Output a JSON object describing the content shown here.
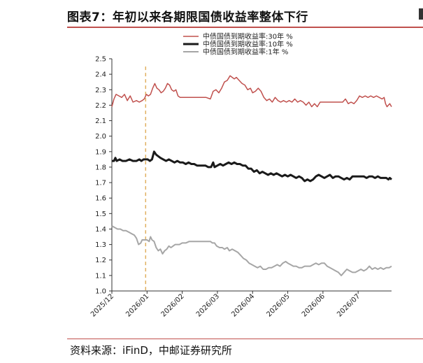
{
  "title": "图表7：年初以来各期限国债收益率整体下行",
  "source": "资料来源：iFinD，中邮证券研究所",
  "chart_data": {
    "type": "line",
    "title": "图表7：年初以来各期限国债收益率整体下行",
    "xlabel": "",
    "ylabel": "",
    "ylim": [
      1.0,
      2.5
    ],
    "y_ticks": [
      "1.0",
      "1.1",
      "1.2",
      "1.3",
      "1.4",
      "1.5",
      "1.6",
      "1.7",
      "1.8",
      "1.9",
      "2.0",
      "2.1",
      "2.2",
      "2.3",
      "2.4",
      "2.5"
    ],
    "x_ticks": [
      "2025/12",
      "2026/01",
      "2026/02",
      "2026/03",
      "2026/04",
      "2026/05",
      "2026/06",
      "2026/07"
    ],
    "x_range": [
      0,
      7.95
    ],
    "legend_position": "top-center",
    "grid": false,
    "marker_line": {
      "x": 0.96,
      "color": "#e0b060",
      "style": "dashed"
    },
    "series": [
      {
        "name": "中债国债到期收益率:30年 %",
        "color": "#c0504d",
        "width": 1.5,
        "points": [
          [
            0.0,
            2.19
          ],
          [
            0.06,
            2.24
          ],
          [
            0.12,
            2.27
          ],
          [
            0.2,
            2.26
          ],
          [
            0.28,
            2.25
          ],
          [
            0.36,
            2.27
          ],
          [
            0.44,
            2.23
          ],
          [
            0.52,
            2.26
          ],
          [
            0.6,
            2.22
          ],
          [
            0.7,
            2.23
          ],
          [
            0.78,
            2.22
          ],
          [
            0.86,
            2.23
          ],
          [
            0.92,
            2.24
          ],
          [
            0.98,
            2.27
          ],
          [
            1.04,
            2.26
          ],
          [
            1.1,
            2.27
          ],
          [
            1.16,
            2.31
          ],
          [
            1.22,
            2.34
          ],
          [
            1.28,
            2.31
          ],
          [
            1.34,
            2.3
          ],
          [
            1.4,
            2.28
          ],
          [
            1.46,
            2.29
          ],
          [
            1.52,
            2.31
          ],
          [
            1.58,
            2.34
          ],
          [
            1.64,
            2.33
          ],
          [
            1.7,
            2.3
          ],
          [
            1.76,
            2.29
          ],
          [
            1.82,
            2.3
          ],
          [
            1.88,
            2.26
          ],
          [
            1.94,
            2.25
          ],
          [
            2.05,
            2.25
          ],
          [
            2.2,
            2.25
          ],
          [
            2.35,
            2.25
          ],
          [
            2.5,
            2.25
          ],
          [
            2.68,
            2.25
          ],
          [
            2.8,
            2.24
          ],
          [
            2.88,
            2.29
          ],
          [
            2.96,
            2.3
          ],
          [
            3.04,
            2.28
          ],
          [
            3.12,
            2.31
          ],
          [
            3.2,
            2.35
          ],
          [
            3.28,
            2.36
          ],
          [
            3.36,
            2.39
          ],
          [
            3.42,
            2.38
          ],
          [
            3.48,
            2.37
          ],
          [
            3.54,
            2.38
          ],
          [
            3.62,
            2.36
          ],
          [
            3.7,
            2.34
          ],
          [
            3.78,
            2.33
          ],
          [
            3.86,
            2.3
          ],
          [
            3.94,
            2.31
          ],
          [
            4.0,
            2.28
          ],
          [
            4.08,
            2.29
          ],
          [
            4.16,
            2.31
          ],
          [
            4.24,
            2.29
          ],
          [
            4.32,
            2.25
          ],
          [
            4.4,
            2.23
          ],
          [
            4.48,
            2.24
          ],
          [
            4.56,
            2.22
          ],
          [
            4.64,
            2.25
          ],
          [
            4.72,
            2.23
          ],
          [
            4.8,
            2.22
          ],
          [
            4.88,
            2.23
          ],
          [
            4.96,
            2.22
          ],
          [
            5.04,
            2.23
          ],
          [
            5.12,
            2.22
          ],
          [
            5.2,
            2.24
          ],
          [
            5.28,
            2.22
          ],
          [
            5.36,
            2.23
          ],
          [
            5.44,
            2.22
          ],
          [
            5.52,
            2.2
          ],
          [
            5.6,
            2.22
          ],
          [
            5.68,
            2.19
          ],
          [
            5.76,
            2.21
          ],
          [
            5.84,
            2.19
          ],
          [
            5.92,
            2.22
          ],
          [
            6.0,
            2.22
          ],
          [
            6.2,
            2.22
          ],
          [
            6.4,
            2.22
          ],
          [
            6.56,
            2.22
          ],
          [
            6.64,
            2.24
          ],
          [
            6.72,
            2.21
          ],
          [
            6.8,
            2.22
          ],
          [
            6.88,
            2.21
          ],
          [
            6.96,
            2.23
          ],
          [
            7.04,
            2.26
          ],
          [
            7.12,
            2.25
          ],
          [
            7.2,
            2.26
          ],
          [
            7.28,
            2.25
          ],
          [
            7.36,
            2.26
          ],
          [
            7.44,
            2.25
          ],
          [
            7.52,
            2.26
          ],
          [
            7.6,
            2.25
          ],
          [
            7.68,
            2.24
          ],
          [
            7.74,
            2.25
          ],
          [
            7.78,
            2.21
          ],
          [
            7.82,
            2.19
          ],
          [
            7.86,
            2.2
          ],
          [
            7.9,
            2.21
          ],
          [
            7.95,
            2.19
          ]
        ]
      },
      {
        "name": "中债国债到期收益率:10年 %",
        "color": "#1a1a1a",
        "width": 3,
        "points": [
          [
            0.0,
            1.84
          ],
          [
            0.06,
            1.84
          ],
          [
            0.1,
            1.86
          ],
          [
            0.14,
            1.84
          ],
          [
            0.22,
            1.85
          ],
          [
            0.3,
            1.84
          ],
          [
            0.4,
            1.84
          ],
          [
            0.5,
            1.85
          ],
          [
            0.6,
            1.84
          ],
          [
            0.7,
            1.84
          ],
          [
            0.78,
            1.85
          ],
          [
            0.84,
            1.84
          ],
          [
            0.9,
            1.85
          ],
          [
            0.96,
            1.85
          ],
          [
            1.02,
            1.85
          ],
          [
            1.08,
            1.84
          ],
          [
            1.14,
            1.85
          ],
          [
            1.2,
            1.9
          ],
          [
            1.26,
            1.88
          ],
          [
            1.32,
            1.87
          ],
          [
            1.38,
            1.86
          ],
          [
            1.46,
            1.85
          ],
          [
            1.54,
            1.84
          ],
          [
            1.62,
            1.85
          ],
          [
            1.7,
            1.84
          ],
          [
            1.78,
            1.83
          ],
          [
            1.86,
            1.84
          ],
          [
            1.94,
            1.83
          ],
          [
            2.02,
            1.83
          ],
          [
            2.1,
            1.82
          ],
          [
            2.18,
            1.83
          ],
          [
            2.26,
            1.82
          ],
          [
            2.34,
            1.82
          ],
          [
            2.42,
            1.81
          ],
          [
            2.5,
            1.81
          ],
          [
            2.58,
            1.81
          ],
          [
            2.66,
            1.81
          ],
          [
            2.74,
            1.8
          ],
          [
            2.82,
            1.8
          ],
          [
            2.88,
            1.83
          ],
          [
            2.92,
            1.8
          ],
          [
            3.0,
            1.81
          ],
          [
            3.08,
            1.82
          ],
          [
            3.16,
            1.81
          ],
          [
            3.24,
            1.82
          ],
          [
            3.32,
            1.83
          ],
          [
            3.4,
            1.82
          ],
          [
            3.48,
            1.83
          ],
          [
            3.56,
            1.82
          ],
          [
            3.64,
            1.82
          ],
          [
            3.72,
            1.81
          ],
          [
            3.8,
            1.81
          ],
          [
            3.88,
            1.79
          ],
          [
            3.96,
            1.79
          ],
          [
            4.04,
            1.77
          ],
          [
            4.12,
            1.78
          ],
          [
            4.2,
            1.76
          ],
          [
            4.28,
            1.77
          ],
          [
            4.36,
            1.76
          ],
          [
            4.44,
            1.75
          ],
          [
            4.52,
            1.76
          ],
          [
            4.6,
            1.75
          ],
          [
            4.68,
            1.76
          ],
          [
            4.76,
            1.75
          ],
          [
            4.84,
            1.74
          ],
          [
            4.92,
            1.75
          ],
          [
            5.0,
            1.74
          ],
          [
            5.08,
            1.75
          ],
          [
            5.16,
            1.74
          ],
          [
            5.24,
            1.73
          ],
          [
            5.32,
            1.74
          ],
          [
            5.4,
            1.73
          ],
          [
            5.48,
            1.71
          ],
          [
            5.56,
            1.72
          ],
          [
            5.64,
            1.71
          ],
          [
            5.72,
            1.72
          ],
          [
            5.8,
            1.74
          ],
          [
            5.88,
            1.75
          ],
          [
            5.96,
            1.74
          ],
          [
            6.04,
            1.73
          ],
          [
            6.12,
            1.74
          ],
          [
            6.2,
            1.75
          ],
          [
            6.28,
            1.73
          ],
          [
            6.36,
            1.74
          ],
          [
            6.44,
            1.74
          ],
          [
            6.52,
            1.73
          ],
          [
            6.6,
            1.72
          ],
          [
            6.68,
            1.73
          ],
          [
            6.76,
            1.72
          ],
          [
            6.84,
            1.74
          ],
          [
            6.92,
            1.74
          ],
          [
            7.0,
            1.74
          ],
          [
            7.08,
            1.74
          ],
          [
            7.16,
            1.74
          ],
          [
            7.24,
            1.73
          ],
          [
            7.32,
            1.74
          ],
          [
            7.4,
            1.74
          ],
          [
            7.48,
            1.73
          ],
          [
            7.56,
            1.74
          ],
          [
            7.64,
            1.73
          ],
          [
            7.72,
            1.73
          ],
          [
            7.8,
            1.73
          ],
          [
            7.86,
            1.72
          ],
          [
            7.9,
            1.73
          ],
          [
            7.95,
            1.72
          ]
        ]
      },
      {
        "name": "中债国债到期收益率:1年 %",
        "color": "#a6a6a6",
        "width": 2,
        "points": [
          [
            0.0,
            1.42
          ],
          [
            0.08,
            1.41
          ],
          [
            0.16,
            1.4
          ],
          [
            0.24,
            1.4
          ],
          [
            0.32,
            1.39
          ],
          [
            0.4,
            1.39
          ],
          [
            0.48,
            1.38
          ],
          [
            0.56,
            1.37
          ],
          [
            0.64,
            1.36
          ],
          [
            0.7,
            1.34
          ],
          [
            0.76,
            1.3
          ],
          [
            0.82,
            1.31
          ],
          [
            0.86,
            1.33
          ],
          [
            0.92,
            1.33
          ],
          [
            1.0,
            1.33
          ],
          [
            1.06,
            1.32
          ],
          [
            1.1,
            1.35
          ],
          [
            1.14,
            1.33
          ],
          [
            1.2,
            1.32
          ],
          [
            1.26,
            1.28
          ],
          [
            1.32,
            1.26
          ],
          [
            1.38,
            1.27
          ],
          [
            1.44,
            1.24
          ],
          [
            1.5,
            1.26
          ],
          [
            1.56,
            1.27
          ],
          [
            1.62,
            1.29
          ],
          [
            1.68,
            1.28
          ],
          [
            1.74,
            1.29
          ],
          [
            1.8,
            1.3
          ],
          [
            1.86,
            1.3
          ],
          [
            1.92,
            1.3
          ],
          [
            2.0,
            1.31
          ],
          [
            2.1,
            1.31
          ],
          [
            2.2,
            1.32
          ],
          [
            2.3,
            1.32
          ],
          [
            2.4,
            1.32
          ],
          [
            2.5,
            1.32
          ],
          [
            2.6,
            1.32
          ],
          [
            2.7,
            1.32
          ],
          [
            2.8,
            1.32
          ],
          [
            2.86,
            1.31
          ],
          [
            2.92,
            1.31
          ],
          [
            2.98,
            1.29
          ],
          [
            3.06,
            1.28
          ],
          [
            3.14,
            1.28
          ],
          [
            3.2,
            1.27
          ],
          [
            3.28,
            1.28
          ],
          [
            3.34,
            1.26
          ],
          [
            3.42,
            1.27
          ],
          [
            3.5,
            1.26
          ],
          [
            3.58,
            1.25
          ],
          [
            3.66,
            1.23
          ],
          [
            3.74,
            1.21
          ],
          [
            3.82,
            1.2
          ],
          [
            3.9,
            1.18
          ],
          [
            3.98,
            1.17
          ],
          [
            4.06,
            1.16
          ],
          [
            4.14,
            1.15
          ],
          [
            4.22,
            1.16
          ],
          [
            4.3,
            1.14
          ],
          [
            4.38,
            1.14
          ],
          [
            4.46,
            1.15
          ],
          [
            4.54,
            1.15
          ],
          [
            4.62,
            1.16
          ],
          [
            4.7,
            1.17
          ],
          [
            4.78,
            1.16
          ],
          [
            4.86,
            1.18
          ],
          [
            4.94,
            1.19
          ],
          [
            5.0,
            1.18
          ],
          [
            5.08,
            1.17
          ],
          [
            5.16,
            1.16
          ],
          [
            5.24,
            1.16
          ],
          [
            5.32,
            1.15
          ],
          [
            5.4,
            1.15
          ],
          [
            5.48,
            1.16
          ],
          [
            5.56,
            1.16
          ],
          [
            5.64,
            1.16
          ],
          [
            5.72,
            1.17
          ],
          [
            5.8,
            1.18
          ],
          [
            5.88,
            1.17
          ],
          [
            5.96,
            1.18
          ],
          [
            6.04,
            1.18
          ],
          [
            6.12,
            1.16
          ],
          [
            6.2,
            1.15
          ],
          [
            6.28,
            1.14
          ],
          [
            6.36,
            1.13
          ],
          [
            6.44,
            1.12
          ],
          [
            6.52,
            1.1
          ],
          [
            6.6,
            1.12
          ],
          [
            6.68,
            1.14
          ],
          [
            6.76,
            1.13
          ],
          [
            6.84,
            1.12
          ],
          [
            6.92,
            1.12
          ],
          [
            7.0,
            1.13
          ],
          [
            7.08,
            1.14
          ],
          [
            7.16,
            1.13
          ],
          [
            7.24,
            1.14
          ],
          [
            7.32,
            1.16
          ],
          [
            7.4,
            1.14
          ],
          [
            7.48,
            1.15
          ],
          [
            7.56,
            1.14
          ],
          [
            7.64,
            1.15
          ],
          [
            7.72,
            1.14
          ],
          [
            7.8,
            1.15
          ],
          [
            7.88,
            1.15
          ],
          [
            7.95,
            1.16
          ]
        ]
      }
    ]
  }
}
